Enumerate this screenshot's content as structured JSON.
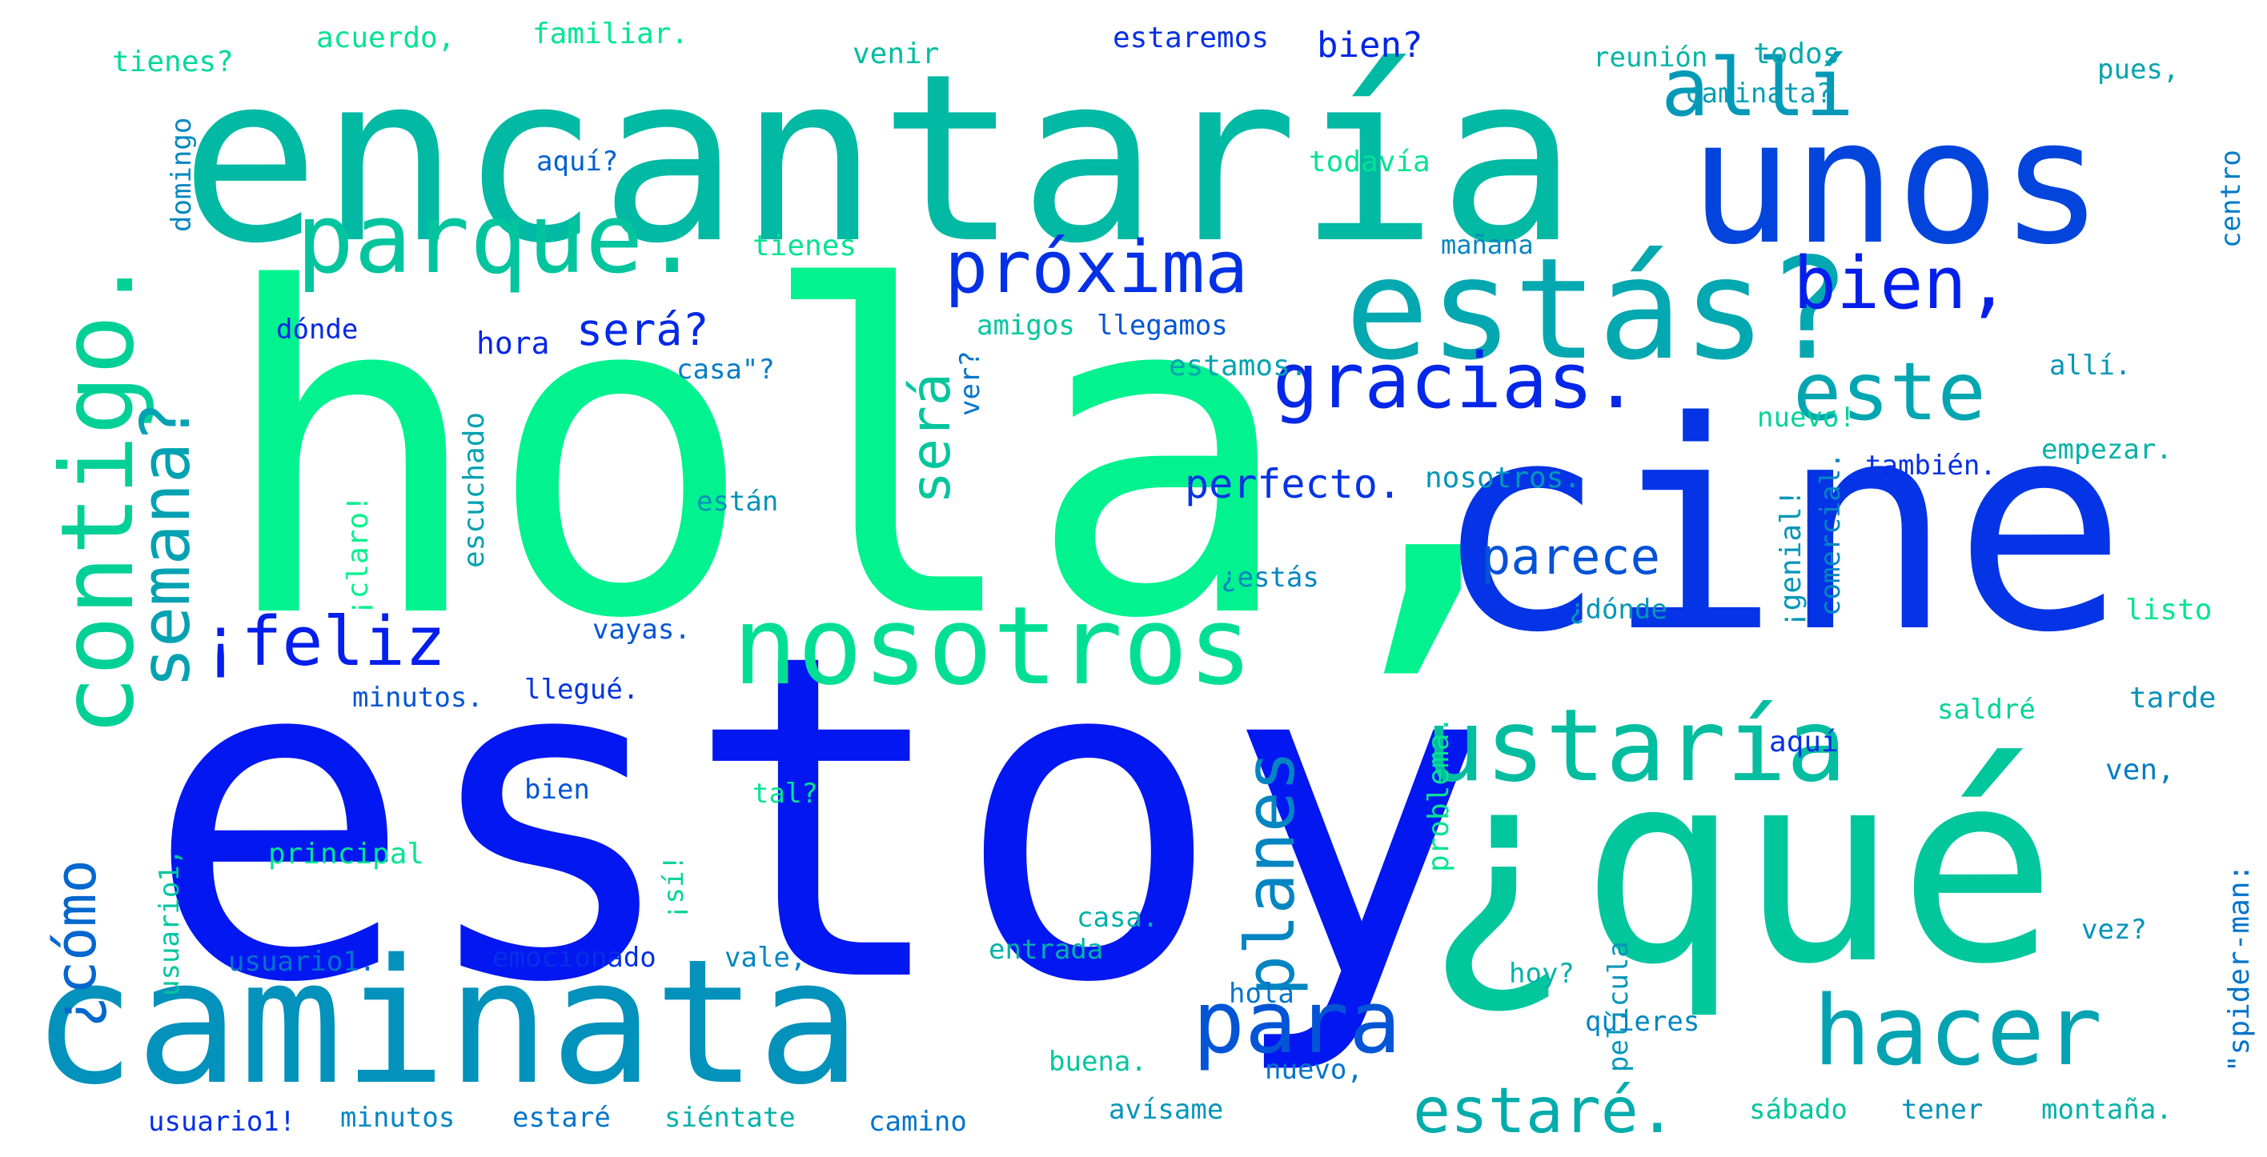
{
  "words": [
    {
      "text": "hola,",
      "color": "#01f28e",
      "vertical": false
    },
    {
      "text": "estoy",
      "color": "#0317f0",
      "vertical": false
    },
    {
      "text": "encantaría",
      "color": "#02b9a4",
      "vertical": false
    },
    {
      "text": "cine",
      "color": "#0434e5",
      "vertical": false
    },
    {
      "text": "¿qué",
      "color": "#02c79d",
      "vertical": false
    },
    {
      "text": "unos",
      "color": "#0345dc",
      "vertical": false
    },
    {
      "text": "caminata",
      "color": "#0292bb",
      "vertical": false
    },
    {
      "text": "estás?",
      "color": "#03a8b0",
      "vertical": false
    },
    {
      "text": "nosotros",
      "color": "#02df95",
      "vertical": false
    },
    {
      "text": "contigo.",
      "color": "#02d096",
      "vertical": true
    },
    {
      "text": "ustaría",
      "color": "#02bda0",
      "vertical": false
    },
    {
      "text": "parque.",
      "color": "#02c59e",
      "vertical": false
    },
    {
      "text": "hacer",
      "color": "#03a3b2",
      "vertical": false
    },
    {
      "text": "para",
      "color": "#0355d6",
      "vertical": false
    },
    {
      "text": "allí",
      "color": "#0299b8",
      "vertical": false
    },
    {
      "text": "este",
      "color": "#02a6b1",
      "vertical": false
    },
    {
      "text": "gracias.",
      "color": "#0427e8",
      "vertical": false
    },
    {
      "text": "próxima",
      "color": "#0430e6",
      "vertical": false
    },
    {
      "text": "bien,",
      "color": "#041fec",
      "vertical": false
    },
    {
      "text": "semana?",
      "color": "#03a2b2",
      "vertical": true
    },
    {
      "text": "¡feliz",
      "color": "#041eec",
      "vertical": false
    },
    {
      "text": "planes",
      "color": "#0385c2",
      "vertical": true
    },
    {
      "text": "estaré.",
      "color": "#02acab",
      "vertical": false
    },
    {
      "text": "¿cómo",
      "color": "#0367ce",
      "vertical": true
    },
    {
      "text": "será",
      "color": "#02c69c",
      "vertical": true
    },
    {
      "text": "parece",
      "color": "#0352d7",
      "vertical": false
    },
    {
      "text": "será?",
      "color": "#0428e8",
      "vertical": false
    },
    {
      "text": "perfecto.",
      "color": "#0434e4",
      "vertical": false
    },
    {
      "text": "hora",
      "color": "#0426e9",
      "vertical": false
    },
    {
      "text": "bien?",
      "color": "#0426e9",
      "vertical": false
    },
    {
      "text": "tienes?",
      "color": "#02d89a",
      "vertical": false
    },
    {
      "text": "acuerdo,",
      "color": "#02e294",
      "vertical": false
    },
    {
      "text": "familiar.",
      "color": "#02e494",
      "vertical": false
    },
    {
      "text": "venir",
      "color": "#02bda2",
      "vertical": false
    },
    {
      "text": "estaremos",
      "color": "#0430e6",
      "vertical": false
    },
    {
      "text": "reunión",
      "color": "#02b5a6",
      "vertical": false
    },
    {
      "text": "todos",
      "color": "#03aaad",
      "vertical": false
    },
    {
      "text": "pues,",
      "color": "#03a3b0",
      "vertical": false
    },
    {
      "text": "caminata?",
      "color": "#029eb6",
      "vertical": false
    },
    {
      "text": "domingo",
      "color": "#0388c1",
      "vertical": true
    },
    {
      "text": "aquí?",
      "color": "#0261cf",
      "vertical": false
    },
    {
      "text": "todavía",
      "color": "#02e393",
      "vertical": false
    },
    {
      "text": "centro",
      "color": "#037cc6",
      "vertical": true
    },
    {
      "text": "tienes",
      "color": "#02e393",
      "vertical": false
    },
    {
      "text": "mañana",
      "color": "#0386c2",
      "vertical": false
    },
    {
      "text": "dónde",
      "color": "#0427e8",
      "vertical": false
    },
    {
      "text": "amigos",
      "color": "#02c69e",
      "vertical": false
    },
    {
      "text": "llegamos",
      "color": "#0355d6",
      "vertical": false
    },
    {
      "text": "casa\"?",
      "color": "#037cc6",
      "vertical": false
    },
    {
      "text": "ver?",
      "color": "#0374ca",
      "vertical": true
    },
    {
      "text": "estamos.",
      "color": "#03a3b0",
      "vertical": false
    },
    {
      "text": "allí.",
      "color": "#0296b9",
      "vertical": false
    },
    {
      "text": "nuevo!",
      "color": "#02d39a",
      "vertical": false
    },
    {
      "text": "escuchado",
      "color": "#03a2b1",
      "vertical": true
    },
    {
      "text": "¡claro!",
      "color": "#01f08e",
      "vertical": true
    },
    {
      "text": "nosotros.",
      "color": "#0396b9",
      "vertical": false
    },
    {
      "text": "comercial.",
      "color": "#0386c2",
      "vertical": true
    },
    {
      "text": "¡genial!",
      "color": "#0296b9",
      "vertical": true
    },
    {
      "text": "también.",
      "color": "#0430e6",
      "vertical": false
    },
    {
      "text": "empezar.",
      "color": "#02b1a8",
      "vertical": false
    },
    {
      "text": "están",
      "color": "#0392bb",
      "vertical": false
    },
    {
      "text": "¿estás",
      "color": "#0385c2",
      "vertical": false
    },
    {
      "text": "¿dónde",
      "color": "#0396b9",
      "vertical": false
    },
    {
      "text": "listo",
      "color": "#02e393",
      "vertical": false
    },
    {
      "text": "vayas.",
      "color": "#0355d6",
      "vertical": false
    },
    {
      "text": "minutos.",
      "color": "#0355d6",
      "vertical": false
    },
    {
      "text": "llegué.",
      "color": "#0434e4",
      "vertical": false
    },
    {
      "text": "problema.",
      "color": "#02e393",
      "vertical": true
    },
    {
      "text": "tarde",
      "color": "#0392bb",
      "vertical": false
    },
    {
      "text": "saldré",
      "color": "#02d39a",
      "vertical": false
    },
    {
      "text": "aquí",
      "color": "#0430e6",
      "vertical": false
    },
    {
      "text": "usuario1,",
      "color": "#02c69e",
      "vertical": true
    },
    {
      "text": "bien",
      "color": "#0355d6",
      "vertical": false
    },
    {
      "text": "tal?",
      "color": "#02e393",
      "vertical": false
    },
    {
      "text": "ven,",
      "color": "#037cc6",
      "vertical": false
    },
    {
      "text": "película",
      "color": "#0396b9",
      "vertical": true
    },
    {
      "text": "¡sí!",
      "color": "#02d39a",
      "vertical": true
    },
    {
      "text": "principal",
      "color": "#02e393",
      "vertical": false
    },
    {
      "text": "\"spider-man:",
      "color": "#0374ca",
      "vertical": true
    },
    {
      "text": "casa.",
      "color": "#02b1a8",
      "vertical": false
    },
    {
      "text": "vez?",
      "color": "#0392bb",
      "vertical": false
    },
    {
      "text": "usuario1.",
      "color": "#0374ca",
      "vertical": false
    },
    {
      "text": "emocionado",
      "color": "#0430e6",
      "vertical": false
    },
    {
      "text": "vale,",
      "color": "#0386c2",
      "vertical": false
    },
    {
      "text": "entrada",
      "color": "#02b1a8",
      "vertical": false
    },
    {
      "text": "hola",
      "color": "#0374ca",
      "vertical": false
    },
    {
      "text": "hoy?",
      "color": "#02b1a8",
      "vertical": false
    },
    {
      "text": "quieres",
      "color": "#0386c2",
      "vertical": false
    },
    {
      "text": "buena.",
      "color": "#02c69e",
      "vertical": false
    },
    {
      "text": "nuevo,",
      "color": "#0374ca",
      "vertical": false
    },
    {
      "text": "usuario1!",
      "color": "#0430e6",
      "vertical": false
    },
    {
      "text": "minutos",
      "color": "#0386c2",
      "vertical": false
    },
    {
      "text": "estaré",
      "color": "#0374ca",
      "vertical": false
    },
    {
      "text": "siéntate",
      "color": "#02b1a8",
      "vertical": false
    },
    {
      "text": "camino",
      "color": "#0374ca",
      "vertical": false
    },
    {
      "text": "avísame",
      "color": "#0396b9",
      "vertical": false
    },
    {
      "text": "sábado",
      "color": "#02c69e",
      "vertical": false
    },
    {
      "text": "tener",
      "color": "#0392bb",
      "vertical": false
    },
    {
      "text": "montaña.",
      "color": "#02b1a8",
      "vertical": false
    }
  ]
}
